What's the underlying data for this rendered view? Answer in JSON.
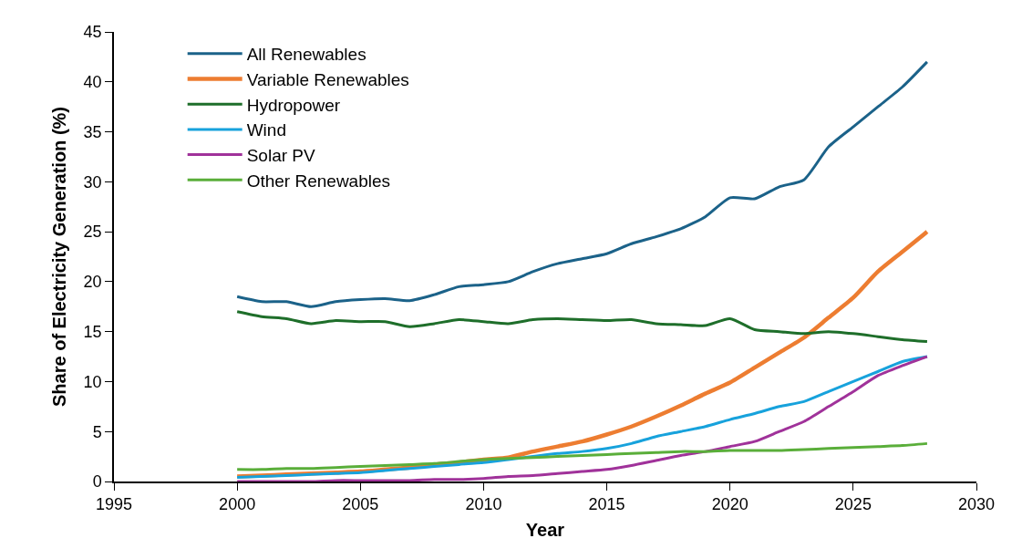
{
  "chart_data": {
    "type": "line",
    "xlabel": "Year",
    "ylabel": "Share of Electricity Generation (%)",
    "x": [
      2000,
      2001,
      2002,
      2003,
      2004,
      2005,
      2006,
      2007,
      2008,
      2009,
      2010,
      2011,
      2012,
      2013,
      2014,
      2015,
      2016,
      2017,
      2018,
      2019,
      2020,
      2021,
      2022,
      2023,
      2024,
      2025,
      2026,
      2027,
      2028
    ],
    "series": [
      {
        "name": "All Renewables",
        "color": "#1b6289",
        "values": [
          18.5,
          18.0,
          18.0,
          17.5,
          18.0,
          18.2,
          18.3,
          18.1,
          18.7,
          19.5,
          19.7,
          20.0,
          21.0,
          21.8,
          22.3,
          22.8,
          23.8,
          24.5,
          25.3,
          26.5,
          28.4,
          28.3,
          29.5,
          30.2,
          33.5,
          35.5,
          37.5,
          39.5,
          42.0
        ]
      },
      {
        "name": "Variable Renewables",
        "color": "#ed7d31",
        "values": [
          0.5,
          0.6,
          0.7,
          0.8,
          0.9,
          1.0,
          1.2,
          1.4,
          1.7,
          1.9,
          2.2,
          2.4,
          3.0,
          3.5,
          4.0,
          4.7,
          5.5,
          6.5,
          7.6,
          8.8,
          9.9,
          11.4,
          12.9,
          14.4,
          16.4,
          18.4,
          21.0,
          23.0,
          25.0
        ]
      },
      {
        "name": "Hydropower",
        "color": "#1e6e2a",
        "values": [
          17.0,
          16.5,
          16.3,
          15.8,
          16.1,
          16.0,
          16.0,
          15.5,
          15.8,
          16.2,
          16.0,
          15.8,
          16.2,
          16.3,
          16.2,
          16.1,
          16.2,
          15.8,
          15.7,
          15.6,
          16.3,
          15.2,
          15.0,
          14.8,
          15.0,
          14.8,
          14.5,
          14.2,
          14.0
        ]
      },
      {
        "name": "Wind",
        "color": "#17a2dc",
        "values": [
          0.4,
          0.5,
          0.6,
          0.7,
          0.8,
          0.9,
          1.1,
          1.3,
          1.5,
          1.7,
          1.9,
          2.2,
          2.5,
          2.8,
          3.0,
          3.3,
          3.8,
          4.5,
          5.0,
          5.5,
          6.2,
          6.8,
          7.5,
          8.0,
          9.0,
          10.0,
          11.0,
          12.0,
          12.5
        ]
      },
      {
        "name": "Solar PV",
        "color": "#a0329a",
        "values": [
          0,
          0,
          0,
          0,
          0.1,
          0.1,
          0.1,
          0.1,
          0.2,
          0.2,
          0.3,
          0.5,
          0.6,
          0.8,
          1.0,
          1.2,
          1.6,
          2.1,
          2.6,
          3.0,
          3.5,
          4.0,
          5.0,
          6.0,
          7.5,
          9.0,
          10.6,
          11.6,
          12.5
        ]
      },
      {
        "name": "Other Renewables",
        "color": "#5aae3a",
        "values": [
          1.2,
          1.2,
          1.3,
          1.3,
          1.4,
          1.5,
          1.6,
          1.7,
          1.8,
          2.0,
          2.2,
          2.3,
          2.4,
          2.5,
          2.6,
          2.7,
          2.8,
          2.9,
          3.0,
          3.0,
          3.1,
          3.1,
          3.1,
          3.2,
          3.3,
          3.4,
          3.5,
          3.6,
          3.8
        ]
      }
    ],
    "xlim": [
      1995,
      2030
    ],
    "xticks": [
      1995,
      2000,
      2005,
      2010,
      2015,
      2020,
      2025,
      2030
    ],
    "ylim": [
      0,
      45
    ],
    "yticks": [
      0,
      5,
      10,
      15,
      20,
      25,
      30,
      35,
      40,
      45
    ],
    "grid": false,
    "legend": "top left",
    "marker": "none",
    "line_style": "solid"
  }
}
